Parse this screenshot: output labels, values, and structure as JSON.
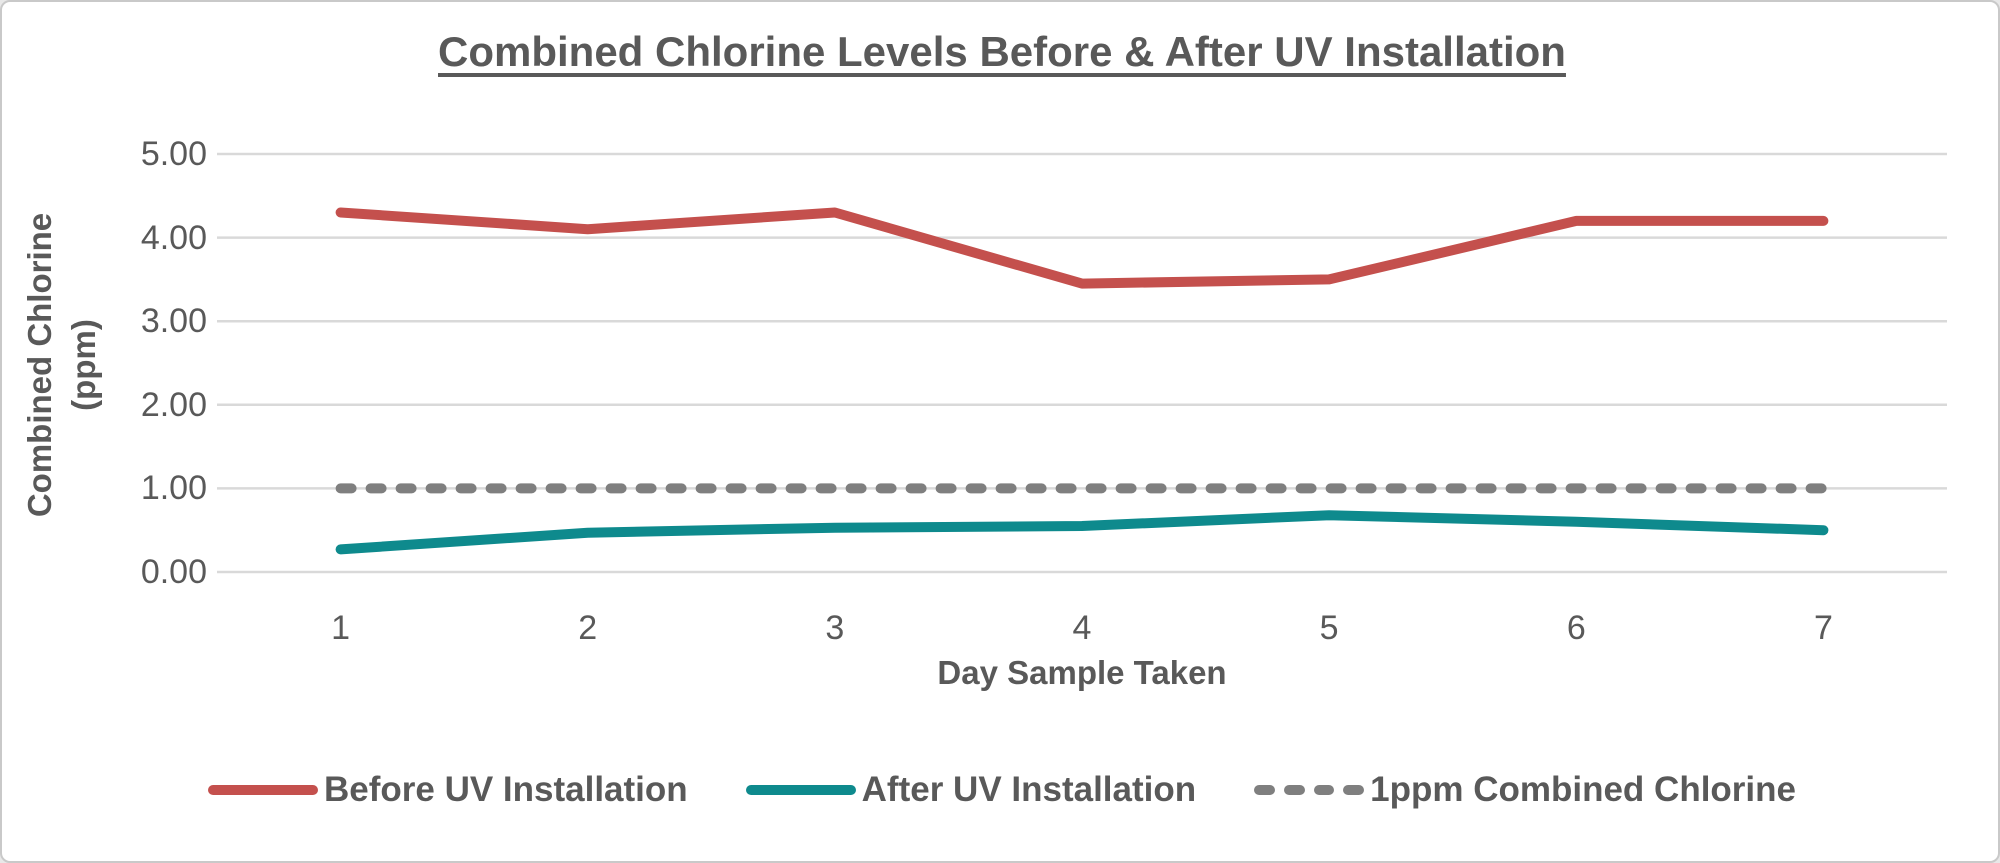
{
  "theme": {
    "background": "#FFFFFF",
    "border_color": "#C9C9C9",
    "text_color": "#595959",
    "gridline_color": "#D9D9D9"
  },
  "chart_data": {
    "type": "line",
    "title": "Combined Chlorine Levels Before & After UV Installation",
    "xlabel": "Day Sample Taken",
    "ylabel": "Combined Chlorine (ppm)",
    "categories": [
      "1",
      "2",
      "3",
      "4",
      "5",
      "6",
      "7"
    ],
    "y_tick_labels": [
      "0.00",
      "1.00",
      "2.00",
      "3.00",
      "4.00",
      "5.00"
    ],
    "ylim": [
      0,
      5
    ],
    "grid": "horizontal",
    "legend_position": "bottom",
    "series": [
      {
        "name": "Before UV Installation",
        "style": "solid",
        "color": "#C4504D",
        "values": [
          4.3,
          4.1,
          4.3,
          3.45,
          3.5,
          4.2,
          4.2
        ]
      },
      {
        "name": "After UV Installation",
        "style": "solid",
        "color": "#0E8A8D",
        "values": [
          0.27,
          0.47,
          0.53,
          0.55,
          0.68,
          0.6,
          0.5
        ]
      },
      {
        "name": "1ppm Combined Chlorine",
        "style": "dashed",
        "color": "#7F7F7F",
        "values": [
          1.0,
          1.0,
          1.0,
          1.0,
          1.0,
          1.0,
          1.0
        ]
      }
    ]
  }
}
